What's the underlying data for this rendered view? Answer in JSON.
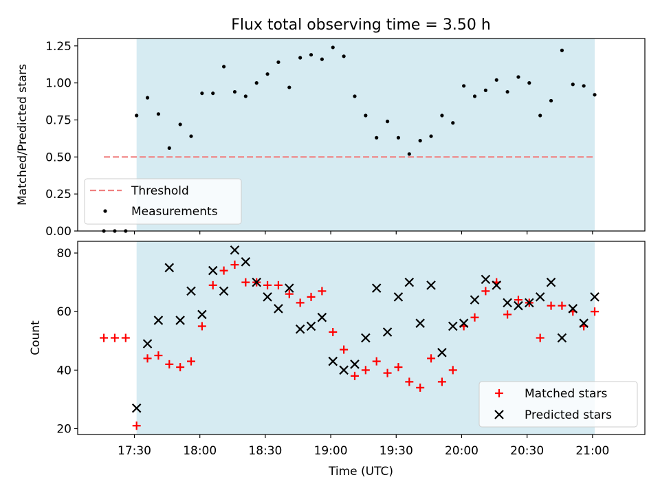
{
  "chart_data": [
    {
      "type": "scatter",
      "title": "Flux total observing time = 3.50 h",
      "xlabel": "",
      "ylabel": "Matched/Predicted stars",
      "ylim": [
        0,
        1.3
      ],
      "yticks": [
        "0.00",
        "0.25",
        "0.50",
        "0.75",
        "1.00",
        "1.25"
      ],
      "xlim": [
        "17:04",
        "21:24"
      ],
      "shaded_span": [
        "17:31",
        "21:01"
      ],
      "legend": {
        "placement": "lower-left",
        "entries": [
          "Threshold",
          "Measurements"
        ]
      },
      "threshold": {
        "name": "Threshold",
        "value": 0.5,
        "x_start": "17:16",
        "x_end": "21:01",
        "color": "#f08080"
      },
      "series": [
        {
          "name": "Measurements",
          "color": "#000000",
          "x": [
            "17:16",
            "17:21",
            "17:26",
            "17:31",
            "17:36",
            "17:41",
            "17:46",
            "17:51",
            "17:56",
            "18:01",
            "18:06",
            "18:11",
            "18:16",
            "18:21",
            "18:26",
            "18:31",
            "18:36",
            "18:41",
            "18:46",
            "18:51",
            "18:56",
            "19:01",
            "19:06",
            "19:11",
            "19:16",
            "19:21",
            "19:26",
            "19:31",
            "19:36",
            "19:41",
            "19:46",
            "19:51",
            "19:56",
            "20:01",
            "20:06",
            "20:11",
            "20:16",
            "20:21",
            "20:26",
            "20:31",
            "20:36",
            "20:41",
            "20:46",
            "20:51",
            "20:56",
            "21:01"
          ],
          "y": [
            0.0,
            0.0,
            0.0,
            0.78,
            0.9,
            0.79,
            0.56,
            0.72,
            0.64,
            0.93,
            0.93,
            1.11,
            0.94,
            0.91,
            1.0,
            1.06,
            1.14,
            0.97,
            1.17,
            1.19,
            1.16,
            1.24,
            1.18,
            0.91,
            0.78,
            0.63,
            0.74,
            0.63,
            0.52,
            0.61,
            0.64,
            0.78,
            0.73,
            0.98,
            0.91,
            0.95,
            1.02,
            0.94,
            1.04,
            1.0,
            0.78,
            0.88,
            1.22,
            0.99,
            0.98,
            0.92
          ]
        }
      ]
    },
    {
      "type": "scatter",
      "title": "",
      "xlabel": "Time (UTC)",
      "ylabel": "Count",
      "ylim": [
        18,
        84
      ],
      "yticks": [
        "20",
        "40",
        "60",
        "80"
      ],
      "xlim": [
        "17:04",
        "21:24"
      ],
      "xticks": [
        "17:30",
        "18:00",
        "18:30",
        "19:00",
        "19:30",
        "20:00",
        "20:30",
        "21:00"
      ],
      "shaded_span": [
        "17:31",
        "21:01"
      ],
      "legend": {
        "placement": "lower-right",
        "entries": [
          "Matched stars",
          "Predicted stars"
        ]
      },
      "series": [
        {
          "name": "Matched stars",
          "marker": "plus",
          "color": "#ff0000",
          "x": [
            "17:16",
            "17:21",
            "17:26",
            "17:31",
            "17:36",
            "17:41",
            "17:46",
            "17:51",
            "17:56",
            "18:01",
            "18:06",
            "18:11",
            "18:16",
            "18:21",
            "18:26",
            "18:31",
            "18:36",
            "18:41",
            "18:46",
            "18:51",
            "18:56",
            "19:01",
            "19:06",
            "19:11",
            "19:16",
            "19:21",
            "19:26",
            "19:31",
            "19:36",
            "19:41",
            "19:46",
            "19:51",
            "19:56",
            "20:01",
            "20:06",
            "20:11",
            "20:16",
            "20:21",
            "20:26",
            "20:31",
            "20:36",
            "20:41",
            "20:46",
            "20:51",
            "20:56",
            "21:01"
          ],
          "y": [
            51,
            51,
            51,
            21,
            44,
            45,
            42,
            41,
            43,
            55,
            69,
            74,
            76,
            70,
            70,
            69,
            69,
            66,
            63,
            65,
            67,
            53,
            47,
            38,
            40,
            43,
            39,
            41,
            36,
            34,
            44,
            36,
            40,
            55,
            58,
            67,
            70,
            59,
            64,
            63,
            51,
            62,
            62,
            60,
            55,
            60
          ]
        },
        {
          "name": "Predicted stars",
          "marker": "x",
          "color": "#000000",
          "x": [
            "17:31",
            "17:36",
            "17:41",
            "17:46",
            "17:51",
            "17:56",
            "18:01",
            "18:06",
            "18:11",
            "18:16",
            "18:21",
            "18:26",
            "18:31",
            "18:36",
            "18:41",
            "18:46",
            "18:51",
            "18:56",
            "19:01",
            "19:06",
            "19:11",
            "19:16",
            "19:21",
            "19:26",
            "19:31",
            "19:36",
            "19:41",
            "19:46",
            "19:51",
            "19:56",
            "20:01",
            "20:06",
            "20:11",
            "20:16",
            "20:21",
            "20:26",
            "20:31",
            "20:36",
            "20:41",
            "20:46",
            "20:51",
            "20:56",
            "21:01"
          ],
          "y": [
            27,
            49,
            57,
            75,
            57,
            67,
            59,
            74,
            67,
            81,
            77,
            70,
            65,
            61,
            68,
            54,
            55,
            58,
            43,
            40,
            42,
            51,
            68,
            53,
            65,
            70,
            56,
            69,
            46,
            55,
            56,
            64,
            71,
            69,
            63,
            62,
            63,
            65,
            70,
            51,
            61,
            56,
            65
          ]
        }
      ]
    }
  ]
}
